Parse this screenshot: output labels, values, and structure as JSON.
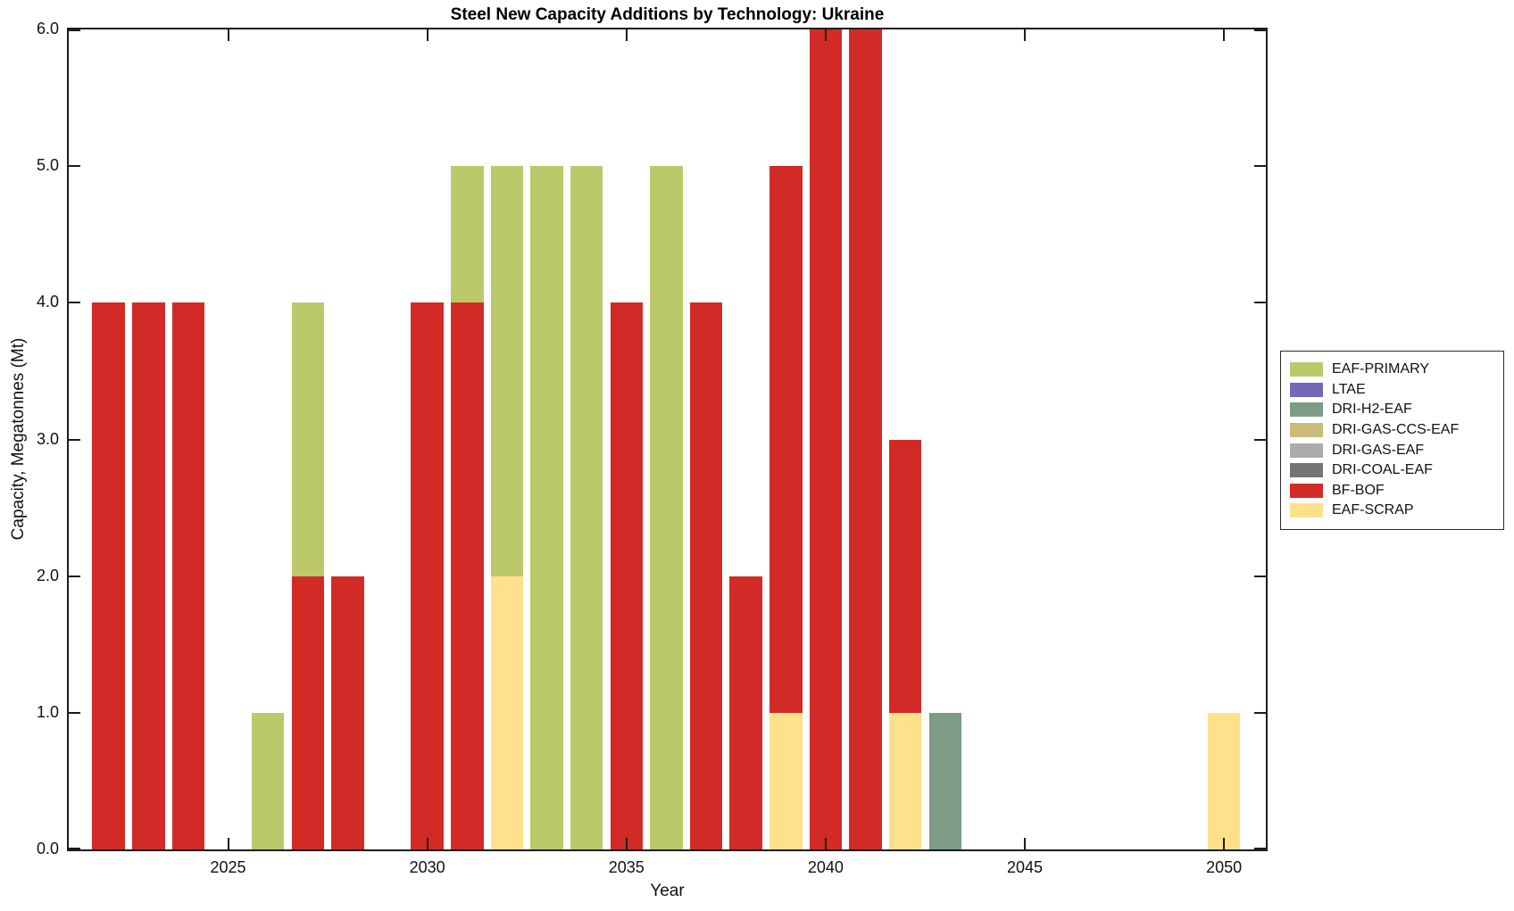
{
  "chart_data": {
    "type": "bar",
    "stacked": true,
    "title": "Steel New Capacity Additions by Technology: Ukraine",
    "xlabel": "Year",
    "ylabel": "Capacity, Megatonnes (Mt)",
    "xlim": [
      2021.0,
      2051.05
    ],
    "ylim": [
      0,
      6
    ],
    "grid": false,
    "background_color": "#ffffff",
    "axis_color": "#1c1c1c",
    "xticks": [
      "2025",
      "2030",
      "2035",
      "2040",
      "2045",
      "2050"
    ],
    "xtick_years": [
      2025,
      2030,
      2035,
      2040,
      2045,
      2050
    ],
    "yticks": [
      "0.0",
      "1.0",
      "2.0",
      "3.0",
      "4.0",
      "5.0",
      "6.0"
    ],
    "ytick_values": [
      0,
      1,
      2,
      3,
      4,
      5,
      6
    ],
    "legend_position": "right-outside",
    "legend": [
      {
        "name": "EAF-PRIMARY",
        "color": "#BCC96A"
      },
      {
        "name": "LTAE",
        "color": "#7568B8"
      },
      {
        "name": "DRI-H2-EAF",
        "color": "#7D9C85"
      },
      {
        "name": "DRI-GAS-CCS-EAF",
        "color": "#C9BC78"
      },
      {
        "name": "DRI-GAS-EAF",
        "color": "#ABABAB"
      },
      {
        "name": "DRI-COAL-EAF",
        "color": "#757575"
      },
      {
        "name": "BF-BOF",
        "color": "#D22B27"
      },
      {
        "name": "EAF-SCRAP",
        "color": "#FFE18C"
      }
    ],
    "stack_order_bottom_to_top": [
      "EAF-SCRAP",
      "BF-BOF",
      "DRI-COAL-EAF",
      "DRI-GAS-EAF",
      "DRI-GAS-CCS-EAF",
      "DRI-H2-EAF",
      "LTAE",
      "EAF-PRIMARY"
    ],
    "bars": [
      {
        "year": 2022,
        "segments": [
          {
            "tech": "BF-BOF",
            "value": 4.0
          }
        ]
      },
      {
        "year": 2023,
        "segments": [
          {
            "tech": "BF-BOF",
            "value": 4.0
          }
        ]
      },
      {
        "year": 2024,
        "segments": [
          {
            "tech": "BF-BOF",
            "value": 4.0
          }
        ]
      },
      {
        "year": 2026,
        "segments": [
          {
            "tech": "EAF-PRIMARY",
            "value": 1.0
          }
        ]
      },
      {
        "year": 2027,
        "segments": [
          {
            "tech": "BF-BOF",
            "value": 2.0
          },
          {
            "tech": "EAF-PRIMARY",
            "value": 2.0
          }
        ]
      },
      {
        "year": 2028,
        "segments": [
          {
            "tech": "BF-BOF",
            "value": 2.0
          }
        ]
      },
      {
        "year": 2030,
        "segments": [
          {
            "tech": "BF-BOF",
            "value": 4.0
          }
        ]
      },
      {
        "year": 2031,
        "segments": [
          {
            "tech": "BF-BOF",
            "value": 4.0
          },
          {
            "tech": "EAF-PRIMARY",
            "value": 1.0
          }
        ]
      },
      {
        "year": 2032,
        "segments": [
          {
            "tech": "EAF-SCRAP",
            "value": 2.0
          },
          {
            "tech": "EAF-PRIMARY",
            "value": 3.0
          }
        ]
      },
      {
        "year": 2033,
        "segments": [
          {
            "tech": "EAF-PRIMARY",
            "value": 5.0
          }
        ]
      },
      {
        "year": 2034,
        "segments": [
          {
            "tech": "EAF-PRIMARY",
            "value": 5.0
          }
        ]
      },
      {
        "year": 2035,
        "segments": [
          {
            "tech": "BF-BOF",
            "value": 4.0
          }
        ]
      },
      {
        "year": 2036,
        "segments": [
          {
            "tech": "EAF-PRIMARY",
            "value": 5.0
          }
        ]
      },
      {
        "year": 2037,
        "segments": [
          {
            "tech": "BF-BOF",
            "value": 4.0
          }
        ]
      },
      {
        "year": 2038,
        "segments": [
          {
            "tech": "BF-BOF",
            "value": 2.0
          }
        ]
      },
      {
        "year": 2039,
        "segments": [
          {
            "tech": "EAF-SCRAP",
            "value": 1.0
          },
          {
            "tech": "BF-BOF",
            "value": 4.0
          }
        ]
      },
      {
        "year": 2040,
        "segments": [
          {
            "tech": "BF-BOF",
            "value": 6.0
          }
        ]
      },
      {
        "year": 2041,
        "segments": [
          {
            "tech": "BF-BOF",
            "value": 6.0
          }
        ]
      },
      {
        "year": 2042,
        "segments": [
          {
            "tech": "EAF-SCRAP",
            "value": 1.0
          },
          {
            "tech": "BF-BOF",
            "value": 2.0
          }
        ]
      },
      {
        "year": 2043,
        "segments": [
          {
            "tech": "DRI-H2-EAF",
            "value": 1.0
          }
        ]
      },
      {
        "year": 2050,
        "segments": [
          {
            "tech": "EAF-SCRAP",
            "value": 1.0
          }
        ]
      }
    ]
  }
}
